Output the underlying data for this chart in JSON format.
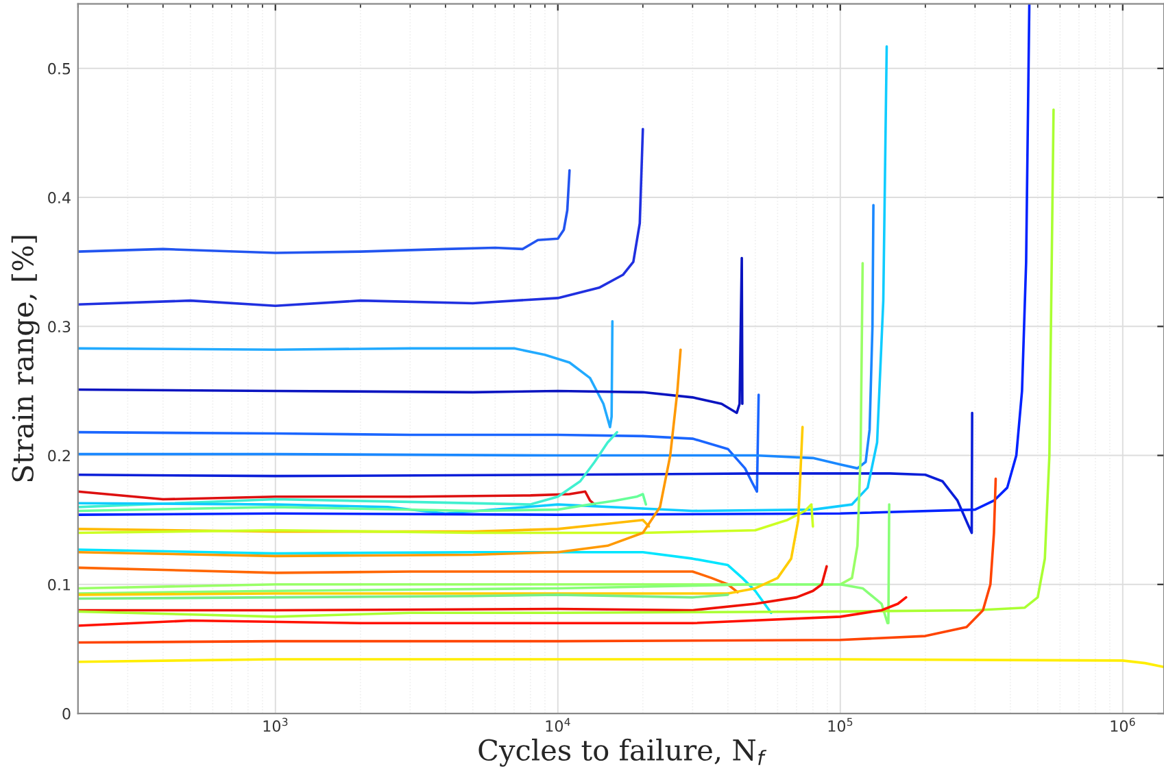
{
  "chart_data": {
    "type": "line",
    "xlabel": "Cycles to failure, N$_{f}$",
    "ylabel": "Strain range, [%]",
    "log": "x",
    "grid": true,
    "marker": "none",
    "line_style": "solid",
    "xlim": [
      200,
      1400000
    ],
    "ylim": [
      0,
      0.55
    ],
    "xticks": [
      {
        "value": 1000,
        "label": "10$^{3}$"
      },
      {
        "value": 10000,
        "label": "10$^{4}$"
      },
      {
        "value": 100000,
        "label": "10$^{5}$"
      },
      {
        "value": 1000000,
        "label": "10$^{6}$"
      }
    ],
    "yticks": [
      0,
      0.1,
      0.2,
      0.3,
      0.4,
      0.5
    ],
    "series": [
      {
        "color": "#2255f0",
        "x": [
          200,
          400,
          1000,
          2000,
          4000,
          6000,
          7500,
          8500,
          10000,
          10500,
          10800,
          11000
        ],
        "values": [
          0.358,
          0.36,
          0.357,
          0.358,
          0.36,
          0.361,
          0.36,
          0.367,
          0.368,
          0.375,
          0.39,
          0.421
        ]
      },
      {
        "color": "#2030e0",
        "x": [
          200,
          500,
          1000,
          2000,
          5000,
          10000,
          14000,
          17000,
          18500,
          19500,
          20000
        ],
        "values": [
          0.317,
          0.32,
          0.316,
          0.32,
          0.318,
          0.322,
          0.33,
          0.34,
          0.35,
          0.38,
          0.453
        ]
      },
      {
        "color": "#22aaff",
        "x": [
          200,
          1000,
          3000,
          7000,
          9000,
          11000,
          13000,
          14500,
          15300,
          15500,
          15600
        ],
        "values": [
          0.283,
          0.282,
          0.283,
          0.283,
          0.278,
          0.272,
          0.26,
          0.24,
          0.222,
          0.23,
          0.304
        ]
      },
      {
        "color": "#0a14c0",
        "x": [
          200,
          1000,
          5000,
          10000,
          20000,
          30000,
          38000,
          43000,
          44000,
          44800,
          45000
        ],
        "values": [
          0.251,
          0.25,
          0.249,
          0.25,
          0.249,
          0.245,
          0.24,
          0.233,
          0.24,
          0.353,
          0.24
        ]
      },
      {
        "color": "#1a66ff",
        "x": [
          200,
          1000,
          3000,
          10000,
          20000,
          30000,
          40000,
          46000,
          49000,
          50700,
          51400
        ],
        "values": [
          0.218,
          0.217,
          0.216,
          0.216,
          0.215,
          0.213,
          0.205,
          0.19,
          0.178,
          0.172,
          0.247
        ]
      },
      {
        "color": "#1a88ff",
        "x": [
          200,
          1000,
          10000,
          50000,
          80000,
          100000,
          115000,
          123000,
          127000,
          130000,
          131000
        ],
        "values": [
          0.201,
          0.201,
          0.2,
          0.2,
          0.198,
          0.193,
          0.19,
          0.195,
          0.22,
          0.3,
          0.394
        ]
      },
      {
        "color": "#0a1ed8",
        "x": [
          200,
          1000,
          10000,
          50000,
          150000,
          200000,
          230000,
          260000,
          285000,
          292000,
          293000
        ],
        "values": [
          0.185,
          0.184,
          0.185,
          0.186,
          0.186,
          0.185,
          0.18,
          0.165,
          0.145,
          0.14,
          0.233
        ]
      },
      {
        "color": "#dd1010",
        "x": [
          200,
          400,
          1000,
          3000,
          8000,
          11000,
          12500,
          13000,
          13500
        ],
        "values": [
          0.172,
          0.166,
          0.168,
          0.168,
          0.169,
          0.17,
          0.172,
          0.165,
          0.162
        ]
      },
      {
        "color": "#40f0d0",
        "x": [
          200,
          1000,
          3000,
          8000,
          10000,
          12000,
          13500,
          15000,
          16200
        ],
        "values": [
          0.16,
          0.166,
          0.164,
          0.162,
          0.168,
          0.18,
          0.195,
          0.21,
          0.218
        ]
      },
      {
        "color": "#10ccff",
        "x": [
          200,
          1000,
          2500,
          4000,
          10000,
          30000,
          80000,
          110000,
          125000,
          135000,
          142000,
          146000
        ],
        "values": [
          0.163,
          0.162,
          0.16,
          0.155,
          0.162,
          0.157,
          0.158,
          0.162,
          0.175,
          0.21,
          0.32,
          0.517
        ]
      },
      {
        "color": "#66ff99",
        "x": [
          200,
          1000,
          5000,
          10000,
          13000,
          16000,
          19000,
          20000,
          20500
        ],
        "values": [
          0.157,
          0.16,
          0.157,
          0.158,
          0.162,
          0.165,
          0.168,
          0.17,
          0.162
        ]
      },
      {
        "color": "#0022ff",
        "x": [
          200,
          1000,
          10000,
          100000,
          300000,
          350000,
          390000,
          420000,
          440000,
          455000,
          467000
        ],
        "values": [
          0.154,
          0.155,
          0.154,
          0.155,
          0.158,
          0.165,
          0.175,
          0.2,
          0.25,
          0.35,
          0.55
        ]
      },
      {
        "color": "#ffbb00",
        "x": [
          200,
          1000,
          5000,
          10000,
          15000,
          20000,
          21000
        ],
        "values": [
          0.143,
          0.141,
          0.141,
          0.143,
          0.147,
          0.15,
          0.145
        ]
      },
      {
        "color": "#ccff22",
        "x": [
          200,
          1000,
          5000,
          20000,
          50000,
          65000,
          75000,
          79000,
          80000
        ],
        "values": [
          0.14,
          0.142,
          0.14,
          0.14,
          0.142,
          0.15,
          0.157,
          0.162,
          0.145
        ]
      },
      {
        "color": "#00e5ff",
        "x": [
          200,
          1000,
          5000,
          20000,
          30000,
          40000,
          45000,
          50000,
          56900
        ],
        "values": [
          0.127,
          0.124,
          0.125,
          0.125,
          0.12,
          0.115,
          0.105,
          0.095,
          0.078
        ]
      },
      {
        "color": "#ff9900",
        "x": [
          200,
          1000,
          5000,
          10000,
          15000,
          20000,
          23000,
          25000,
          26500,
          27200
        ],
        "values": [
          0.125,
          0.122,
          0.123,
          0.125,
          0.13,
          0.14,
          0.16,
          0.2,
          0.25,
          0.282
        ]
      },
      {
        "color": "#ff6600",
        "x": [
          200,
          1000,
          3000,
          10000,
          30000,
          35000,
          40000,
          43300
        ],
        "values": [
          0.113,
          0.109,
          0.11,
          0.11,
          0.11,
          0.105,
          0.1,
          0.094
        ]
      },
      {
        "color": "#99ff66",
        "x": [
          200,
          1000,
          10000,
          50000,
          100000,
          110000,
          115000,
          118000,
          120000
        ],
        "values": [
          0.097,
          0.1,
          0.1,
          0.1,
          0.1,
          0.105,
          0.13,
          0.2,
          0.349
        ]
      },
      {
        "color": "#88ff77",
        "x": [
          200,
          1000,
          10000,
          50000,
          100000,
          120000,
          140000,
          147000,
          148000,
          149000
        ],
        "values": [
          0.093,
          0.095,
          0.097,
          0.1,
          0.1,
          0.097,
          0.085,
          0.07,
          0.07,
          0.162
        ]
      },
      {
        "color": "#ffcc00",
        "x": [
          200,
          1000,
          10000,
          40000,
          50000,
          60000,
          67000,
          71000,
          73500
        ],
        "values": [
          0.092,
          0.093,
          0.093,
          0.093,
          0.097,
          0.105,
          0.12,
          0.15,
          0.222
        ]
      },
      {
        "color": "#77ee88",
        "x": [
          200,
          1000,
          5000,
          10000,
          30000,
          40000
        ],
        "values": [
          0.089,
          0.09,
          0.091,
          0.092,
          0.09,
          0.092
        ]
      },
      {
        "color": "#ee1100",
        "x": [
          200,
          1000,
          10000,
          30000,
          50000,
          70000,
          80000,
          86000,
          89500
        ],
        "values": [
          0.08,
          0.08,
          0.081,
          0.08,
          0.085,
          0.09,
          0.095,
          0.1,
          0.114
        ]
      },
      {
        "color": "#aaff33",
        "x": [
          200,
          1000,
          3000,
          10000,
          100000,
          300000,
          450000,
          500000,
          530000,
          550000,
          569000
        ],
        "values": [
          0.079,
          0.075,
          0.078,
          0.078,
          0.079,
          0.08,
          0.082,
          0.09,
          0.12,
          0.2,
          0.468
        ]
      },
      {
        "color": "#ff1100",
        "x": [
          200,
          500,
          2000,
          10000,
          30000,
          100000,
          140000,
          160000,
          171000
        ],
        "values": [
          0.068,
          0.072,
          0.07,
          0.07,
          0.07,
          0.075,
          0.08,
          0.085,
          0.09
        ]
      },
      {
        "color": "#ff4400",
        "x": [
          200,
          1000,
          10000,
          100000,
          200000,
          280000,
          320000,
          340000,
          350000,
          355000
        ],
        "values": [
          0.055,
          0.056,
          0.056,
          0.057,
          0.06,
          0.067,
          0.08,
          0.1,
          0.14,
          0.182
        ]
      },
      {
        "color": "#ffee00",
        "x": [
          200,
          1000,
          10000,
          100000,
          1000000,
          1200000,
          1400000
        ],
        "values": [
          0.04,
          0.042,
          0.042,
          0.042,
          0.041,
          0.039,
          0.036
        ]
      }
    ]
  }
}
